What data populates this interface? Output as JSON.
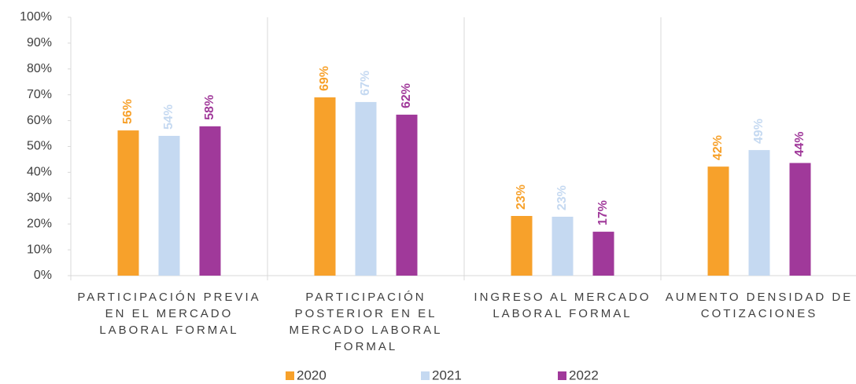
{
  "chart_data": {
    "type": "bar",
    "categories": [
      "PARTICIPACIÓN PREVIA EN EL MERCADO LABORAL FORMAL",
      "PARTICIPACIÓN POSTERIOR EN EL MERCADO LABORAL FORMAL",
      "INGRESO AL MERCADO LABORAL FORMAL",
      "AUMENTO DENSIDAD DE COTIZACIONES"
    ],
    "series": [
      {
        "name": "2020",
        "color": "#f7a12b",
        "values": [
          56.2,
          69,
          23.1,
          42.2
        ],
        "value_labels": [
          "56%",
          "69%",
          "23%",
          "42%"
        ]
      },
      {
        "name": "2021",
        "color": "#c5d9f1",
        "values": [
          54.1,
          67.2,
          22.8,
          48.6
        ],
        "value_labels": [
          "54%",
          "67%",
          "23%",
          "49%"
        ]
      },
      {
        "name": "2022",
        "color": "#a0399a",
        "values": [
          57.8,
          62.3,
          17,
          43.6
        ],
        "value_labels": [
          "58%",
          "62%",
          "17%",
          "44%"
        ]
      }
    ],
    "ylim": [
      0,
      100
    ],
    "yticks": [
      {
        "value": 0,
        "label": "0%"
      },
      {
        "value": 10,
        "label": "10%"
      },
      {
        "value": 20,
        "label": "20%"
      },
      {
        "value": 30,
        "label": "30%"
      },
      {
        "value": 40,
        "label": "40%"
      },
      {
        "value": 50,
        "label": "50%"
      },
      {
        "value": 60,
        "label": "60%"
      },
      {
        "value": 70,
        "label": "70%"
      },
      {
        "value": 80,
        "label": "80%"
      },
      {
        "value": 90,
        "label": "90%"
      },
      {
        "value": 100,
        "label": "100%"
      }
    ],
    "legend": "bottom"
  }
}
